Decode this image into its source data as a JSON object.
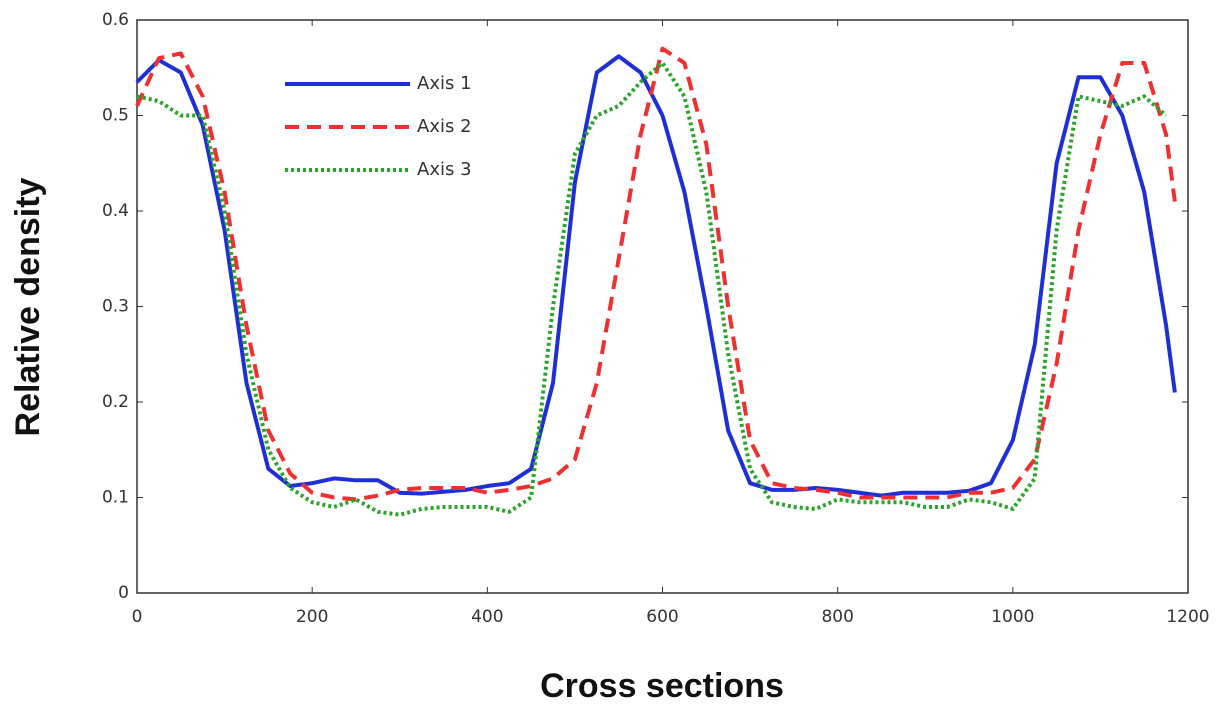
{
  "chart_data": {
    "type": "line",
    "xlabel": "Cross sections",
    "ylabel": "Relative density",
    "x": [
      0,
      25,
      50,
      75,
      100,
      125,
      150,
      175,
      200,
      225,
      250,
      275,
      300,
      325,
      350,
      375,
      400,
      425,
      450,
      475,
      500,
      525,
      550,
      575,
      600,
      625,
      650,
      675,
      700,
      725,
      750,
      775,
      800,
      825,
      850,
      875,
      900,
      925,
      950,
      975,
      1000,
      1025,
      1050,
      1075,
      1100,
      1125,
      1150,
      1175,
      1185
    ],
    "series": [
      {
        "name": "Axis 1",
        "color": "#1f2fd6",
        "dash": "solid",
        "values": [
          0.535,
          0.558,
          0.545,
          0.49,
          0.38,
          0.22,
          0.13,
          0.112,
          0.115,
          0.12,
          0.118,
          0.118,
          0.105,
          0.104,
          0.106,
          0.108,
          0.112,
          0.115,
          0.13,
          0.22,
          0.43,
          0.545,
          0.562,
          0.545,
          0.5,
          0.42,
          0.3,
          0.17,
          0.115,
          0.108,
          0.108,
          0.11,
          0.108,
          0.105,
          0.102,
          0.105,
          0.105,
          0.105,
          0.107,
          0.115,
          0.16,
          0.26,
          0.45,
          0.54,
          0.54,
          0.5,
          0.42,
          0.28,
          0.21
        ]
      },
      {
        "name": "Axis 2",
        "color": "#f03030",
        "dash": "dashed",
        "values": [
          0.51,
          0.56,
          0.565,
          0.52,
          0.42,
          0.28,
          0.17,
          0.125,
          0.105,
          0.1,
          0.098,
          0.102,
          0.108,
          0.11,
          0.11,
          0.11,
          0.105,
          0.108,
          0.112,
          0.12,
          0.14,
          0.22,
          0.35,
          0.48,
          0.57,
          0.555,
          0.47,
          0.3,
          0.16,
          0.115,
          0.11,
          0.108,
          0.105,
          0.1,
          0.1,
          0.1,
          0.1,
          0.1,
          0.105,
          0.105,
          0.11,
          0.14,
          0.24,
          0.38,
          0.48,
          0.555,
          0.555,
          0.48,
          0.41
        ]
      },
      {
        "name": "Axis 3",
        "color": "#2aa52a",
        "dash": "dotted",
        "values": [
          0.52,
          0.515,
          0.5,
          0.5,
          0.4,
          0.25,
          0.15,
          0.11,
          0.095,
          0.09,
          0.098,
          0.085,
          0.082,
          0.088,
          0.09,
          0.09,
          0.09,
          0.085,
          0.1,
          0.3,
          0.46,
          0.5,
          0.51,
          0.535,
          0.555,
          0.52,
          0.42,
          0.25,
          0.13,
          0.095,
          0.09,
          0.088,
          0.098,
          0.095,
          0.095,
          0.095,
          0.09,
          0.09,
          0.098,
          0.095,
          0.088,
          0.12,
          0.38,
          0.52,
          0.515,
          0.51,
          0.52,
          0.5,
          null
        ]
      }
    ],
    "xlim": [
      0,
      1200
    ],
    "xticks": [
      0,
      200,
      400,
      600,
      800,
      1000,
      1200
    ],
    "ylim": [
      0,
      0.6
    ],
    "yticks": [
      0,
      0.1,
      0.2,
      0.3,
      0.4,
      0.5,
      0.6
    ],
    "legend": "upper-left"
  }
}
